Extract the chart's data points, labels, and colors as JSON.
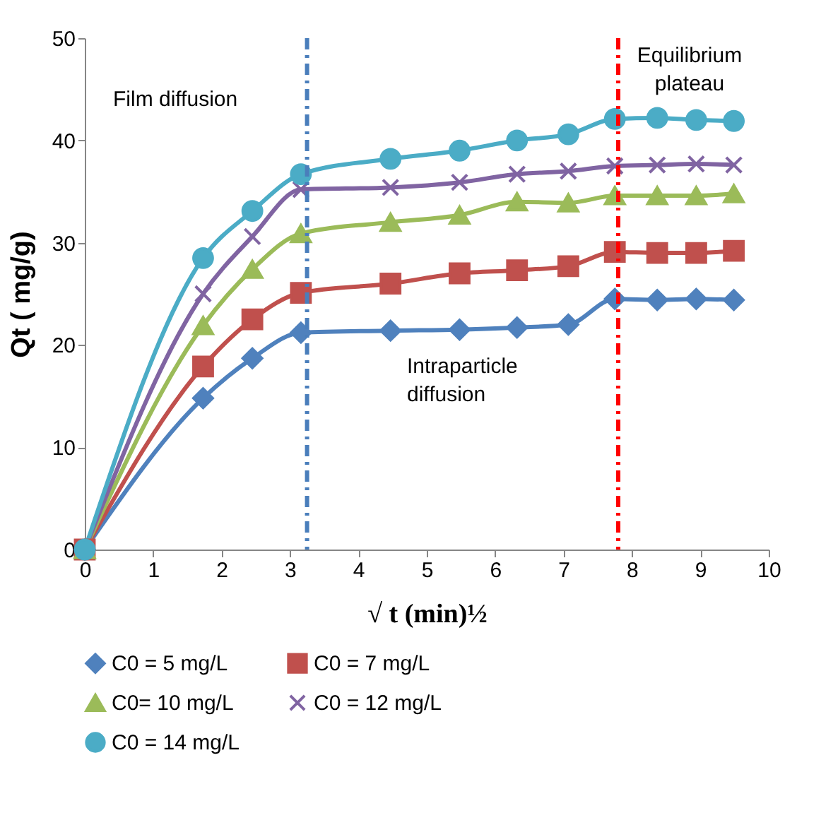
{
  "chart_data": {
    "type": "line",
    "xlabel": "√ t  (min)½",
    "ylabel": "Qt ( mg/g)",
    "x": [
      0,
      1.73,
      2.45,
      3.16,
      4.47,
      5.48,
      6.32,
      7.07,
      7.75,
      8.37,
      8.94,
      9.49
    ],
    "xlim": [
      0,
      10
    ],
    "xticks": [
      0,
      1,
      2,
      3,
      4,
      5,
      6,
      7,
      8,
      9,
      10
    ],
    "ylim": [
      0,
      50
    ],
    "yticks": [
      0,
      10,
      20,
      30,
      40,
      50
    ],
    "grid": false,
    "legend": "bottom",
    "line_style": "solid",
    "series": [
      {
        "name": "C0 = 5 mg/L",
        "color": "#4f81bd",
        "marker": "diamond",
        "values": [
          0,
          14.8,
          18.7,
          21.2,
          21.4,
          21.5,
          21.7,
          22.0,
          24.5,
          24.4,
          24.5,
          24.4
        ]
      },
      {
        "name": "C0 = 7 mg/L",
        "color": "#c0504d",
        "marker": "square",
        "values": [
          0,
          17.9,
          22.5,
          25.1,
          26.0,
          27.0,
          27.3,
          27.7,
          29.1,
          29.0,
          29.0,
          29.2
        ]
      },
      {
        "name": "C0= 10 mg/L",
        "color": "#9bbb59",
        "marker": "triangle",
        "values": [
          0,
          21.9,
          27.4,
          30.9,
          32.0,
          32.7,
          34.0,
          33.9,
          34.6,
          34.6,
          34.6,
          34.8
        ]
      },
      {
        "name": "C0 = 12 mg/L",
        "color": "#8064a2",
        "marker": "cross",
        "values": [
          0,
          25.0,
          30.6,
          35.2,
          35.4,
          35.9,
          36.7,
          37.0,
          37.5,
          37.6,
          37.7,
          37.6
        ]
      },
      {
        "name": "C0 = 14 mg/L",
        "color": "#4bacc6",
        "marker": "circle",
        "values": [
          0,
          28.5,
          33.1,
          36.7,
          38.2,
          39.0,
          40.0,
          40.6,
          42.1,
          42.2,
          42.0,
          41.9
        ]
      }
    ],
    "ref_lines": [
      {
        "axis": "x",
        "value": 3.25,
        "color": "#4a7ebb",
        "line_style": "dashed"
      },
      {
        "axis": "x",
        "value": 7.8,
        "color": "#ff0000",
        "line_style": "dashed"
      }
    ],
    "annotations": [
      "Film diffusion",
      "Intraparticle diffusion",
      "Equilibrium plateau"
    ]
  }
}
